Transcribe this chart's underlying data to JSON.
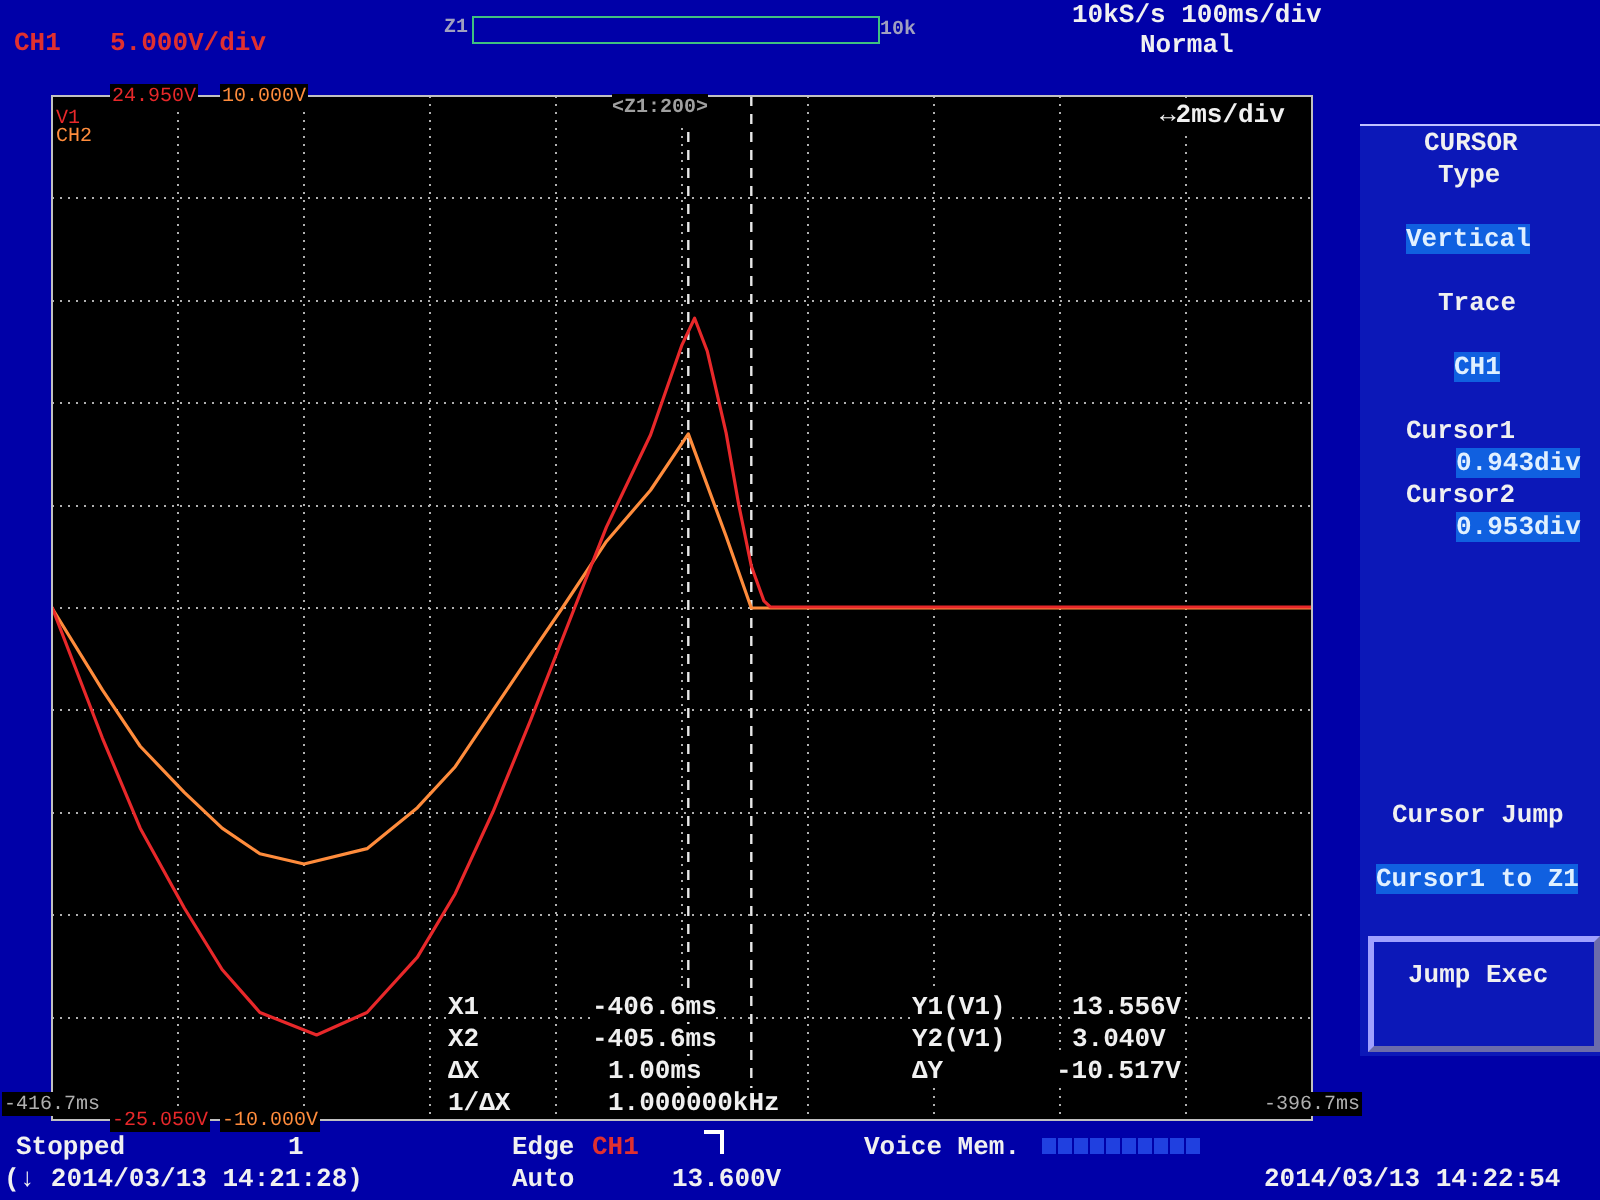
{
  "chart_data": {
    "type": "line",
    "title": null,
    "x": [
      -416.7,
      -415.9,
      -415.3,
      -414.6,
      -414.0,
      -413.4,
      -412.5,
      -411.7,
      -410.9,
      -410.3,
      -409.7,
      -409.1,
      -408.4,
      -407.9,
      -407.2,
      -406.7,
      -406.5,
      -406.3,
      -406.0,
      -405.8,
      -405.6,
      -405.4,
      -405.3,
      -396.7
    ],
    "series": [
      {
        "name": "V1",
        "color": "#e8282a",
        "values": [
          0,
          -6.4,
          -10.8,
          -14.7,
          -17.7,
          -19.8,
          -20.9,
          -19.8,
          -17.1,
          -14.0,
          -10.0,
          -5.5,
          0,
          3.9,
          8.4,
          12.8,
          14.1,
          12.5,
          8.5,
          5.0,
          2.0,
          0.3,
          0,
          0
        ]
      },
      {
        "name": "CH2",
        "color": "#ff8c3c",
        "axis": "y2",
        "x": [
          -416.7,
          -415.9,
          -415.3,
          -414.6,
          -414.0,
          -413.4,
          -412.7,
          -411.7,
          -410.9,
          -410.3,
          -409.7,
          -409.1,
          -408.6,
          -407.9,
          -407.2,
          -406.6,
          -406.3,
          -406.0,
          -405.6,
          -396.7
        ],
        "values": [
          0,
          -1.6,
          -2.7,
          -3.6,
          -4.3,
          -4.8,
          -5.0,
          -4.7,
          -3.9,
          -3.1,
          -2.0,
          -0.9,
          0,
          1.3,
          2.3,
          3.4,
          2.4,
          1.4,
          0,
          0
        ]
      }
    ],
    "xlim": [
      -416.7,
      -396.7
    ],
    "xticks": [
      {
        "value": -416.7,
        "label": "-416.7ms"
      },
      {
        "value": -414.7,
        "label": null
      },
      {
        "value": -412.7,
        "label": null
      },
      {
        "value": -410.7,
        "label": null
      },
      {
        "value": -408.7,
        "label": null
      },
      {
        "value": -406.7,
        "label": null
      },
      {
        "value": -404.7,
        "label": null
      },
      {
        "value": -402.7,
        "label": null
      },
      {
        "value": -400.7,
        "label": null
      },
      {
        "value": -398.7,
        "label": null
      },
      {
        "value": -396.7,
        "label": "-396.7ms"
      }
    ],
    "ylim": [
      -25.05,
      24.95
    ],
    "yticks": [
      {
        "value": -25.05,
        "label": "-25.050V"
      },
      {
        "value": -20.05,
        "label": null
      },
      {
        "value": -15.05,
        "label": null
      },
      {
        "value": -10.05,
        "label": null
      },
      {
        "value": -5.05,
        "label": null
      },
      {
        "value": -0.05,
        "label": null
      },
      {
        "value": 4.95,
        "label": null
      },
      {
        "value": 9.95,
        "label": null
      },
      {
        "value": 14.95,
        "label": null
      },
      {
        "value": 19.95,
        "label": null
      },
      {
        "value": 24.95,
        "label": "24.950V"
      }
    ],
    "y2lim": [
      -10,
      10
    ],
    "y2ticks": [
      {
        "value": -10,
        "label": "-10.000V"
      },
      {
        "value": 10,
        "label": "10.000V"
      }
    ],
    "ref_lines": [
      {
        "axis": "x",
        "value": -406.6,
        "label": null,
        "color": "#e8e8e8",
        "line_style": "dashed"
      },
      {
        "axis": "x",
        "value": -405.6,
        "label": null,
        "color": "#e8e8e8",
        "line_style": "dashed"
      }
    ],
    "grid": true,
    "legend": "top left",
    "marker": "none",
    "line_style": "solid",
    "annotations": [
      "CH1",
      "5.000V/div",
      "Z1",
      "10k",
      "10kS/s 100ms/div",
      "Normal",
      "<Z1:200>",
      "↔2ms/div",
      "CURSOR",
      "Type",
      "Vertical",
      "Trace",
      "CH1",
      "Cursor1",
      "0.943div",
      "Cursor2",
      "0.953div",
      "Cursor Jump",
      "Cursor1 to Z1",
      "Jump Exec",
      "X1",
      "-406.6ms",
      "X2",
      "-405.6ms",
      "ΔX",
      "1.00ms",
      "1/ΔX",
      "1.000000kHz",
      "Y1(V1)",
      "13.556V",
      "Y2(V1)",
      "3.040V",
      "ΔY",
      "-10.517V",
      "Stopped",
      "1",
      "(↓ 2014/03/13 14:21:28)",
      "Edge",
      "CH1",
      "Auto",
      "13.600V",
      "Voice Mem.",
      "2014/03/13 14:22:54"
    ]
  }
}
